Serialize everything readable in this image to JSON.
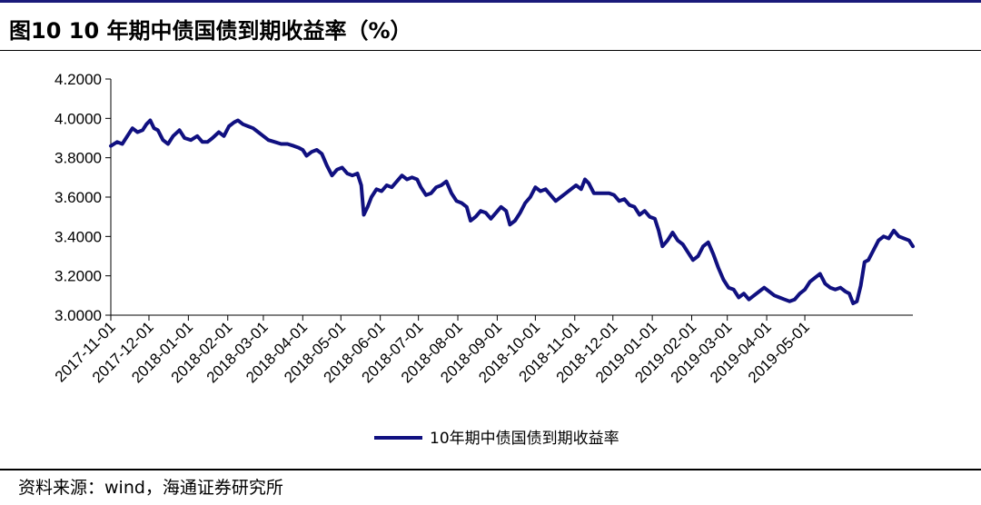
{
  "header": {
    "title": "图10 10 年期中债国债到期收益率（%）"
  },
  "footer": {
    "source": "资料来源：wind，海通证券研究所"
  },
  "colors": {
    "series": "#101080",
    "axis": "#000000",
    "rule": "#1a1a7a"
  },
  "chart_data": {
    "type": "line",
    "title": "图10 10 年期中债国债到期收益率（%）",
    "xlabel": "",
    "ylabel": "",
    "ylim": [
      3.0,
      4.2
    ],
    "y_ticks": [
      "3.0000",
      "3.2000",
      "3.4000",
      "3.6000",
      "3.8000",
      "4.0000",
      "4.2000"
    ],
    "x_ticks": [
      "2017-11-01",
      "2017-12-01",
      "2018-01-01",
      "2018-02-01",
      "2018-03-01",
      "2018-04-01",
      "2018-05-01",
      "2018-06-01",
      "2018-07-01",
      "2018-08-01",
      "2018-09-01",
      "2018-10-01",
      "2018-11-01",
      "2018-12-01",
      "2019-01-01",
      "2019-02-01",
      "2019-03-01",
      "2019-04-01",
      "2019-05-01"
    ],
    "grid": false,
    "legend_position": "bottom",
    "series": [
      {
        "name": "10年期中债国债到期收益率",
        "points": [
          [
            "2017-11-01",
            3.86
          ],
          [
            "2017-11-06",
            3.88
          ],
          [
            "2017-11-10",
            3.87
          ],
          [
            "2017-11-14",
            3.91
          ],
          [
            "2017-11-18",
            3.95
          ],
          [
            "2017-11-22",
            3.93
          ],
          [
            "2017-11-26",
            3.94
          ],
          [
            "2017-11-29",
            3.97
          ],
          [
            "2017-12-02",
            3.99
          ],
          [
            "2017-12-05",
            3.95
          ],
          [
            "2017-12-08",
            3.94
          ],
          [
            "2017-12-12",
            3.89
          ],
          [
            "2017-12-16",
            3.87
          ],
          [
            "2017-12-20",
            3.91
          ],
          [
            "2017-12-25",
            3.94
          ],
          [
            "2017-12-29",
            3.9
          ],
          [
            "2018-01-03",
            3.89
          ],
          [
            "2018-01-08",
            3.91
          ],
          [
            "2018-01-12",
            3.88
          ],
          [
            "2018-01-16",
            3.88
          ],
          [
            "2018-01-20",
            3.9
          ],
          [
            "2018-01-25",
            3.93
          ],
          [
            "2018-01-29",
            3.91
          ],
          [
            "2018-02-02",
            3.96
          ],
          [
            "2018-02-06",
            3.98
          ],
          [
            "2018-02-09",
            3.99
          ],
          [
            "2018-02-13",
            3.97
          ],
          [
            "2018-02-17",
            3.96
          ],
          [
            "2018-02-21",
            3.95
          ],
          [
            "2018-02-25",
            3.93
          ],
          [
            "2018-03-01",
            3.91
          ],
          [
            "2018-03-05",
            3.89
          ],
          [
            "2018-03-10",
            3.88
          ],
          [
            "2018-03-15",
            3.87
          ],
          [
            "2018-03-20",
            3.87
          ],
          [
            "2018-03-25",
            3.86
          ],
          [
            "2018-03-29",
            3.85
          ],
          [
            "2018-04-01",
            3.84
          ],
          [
            "2018-04-04",
            3.81
          ],
          [
            "2018-04-08",
            3.83
          ],
          [
            "2018-04-12",
            3.84
          ],
          [
            "2018-04-16",
            3.82
          ],
          [
            "2018-04-20",
            3.76
          ],
          [
            "2018-04-24",
            3.71
          ],
          [
            "2018-04-28",
            3.74
          ],
          [
            "2018-05-02",
            3.75
          ],
          [
            "2018-05-06",
            3.72
          ],
          [
            "2018-05-10",
            3.71
          ],
          [
            "2018-05-14",
            3.72
          ],
          [
            "2018-05-17",
            3.66
          ],
          [
            "2018-05-19",
            3.51
          ],
          [
            "2018-05-22",
            3.55
          ],
          [
            "2018-05-25",
            3.6
          ],
          [
            "2018-05-29",
            3.64
          ],
          [
            "2018-06-02",
            3.63
          ],
          [
            "2018-06-06",
            3.66
          ],
          [
            "2018-06-10",
            3.65
          ],
          [
            "2018-06-14",
            3.68
          ],
          [
            "2018-06-18",
            3.71
          ],
          [
            "2018-06-22",
            3.69
          ],
          [
            "2018-06-26",
            3.7
          ],
          [
            "2018-06-30",
            3.69
          ],
          [
            "2018-07-03",
            3.65
          ],
          [
            "2018-07-07",
            3.61
          ],
          [
            "2018-07-11",
            3.62
          ],
          [
            "2018-07-15",
            3.65
          ],
          [
            "2018-07-19",
            3.66
          ],
          [
            "2018-07-23",
            3.68
          ],
          [
            "2018-07-27",
            3.62
          ],
          [
            "2018-07-31",
            3.58
          ],
          [
            "2018-08-04",
            3.57
          ],
          [
            "2018-08-08",
            3.55
          ],
          [
            "2018-08-11",
            3.48
          ],
          [
            "2018-08-15",
            3.5
          ],
          [
            "2018-08-19",
            3.53
          ],
          [
            "2018-08-23",
            3.52
          ],
          [
            "2018-08-27",
            3.49
          ],
          [
            "2018-08-31",
            3.52
          ],
          [
            "2018-09-04",
            3.55
          ],
          [
            "2018-09-08",
            3.53
          ],
          [
            "2018-09-11",
            3.46
          ],
          [
            "2018-09-15",
            3.48
          ],
          [
            "2018-09-19",
            3.52
          ],
          [
            "2018-09-23",
            3.57
          ],
          [
            "2018-09-27",
            3.6
          ],
          [
            "2018-10-01",
            3.65
          ],
          [
            "2018-10-05",
            3.63
          ],
          [
            "2018-10-09",
            3.64
          ],
          [
            "2018-10-13",
            3.61
          ],
          [
            "2018-10-17",
            3.58
          ],
          [
            "2018-10-21",
            3.6
          ],
          [
            "2018-10-25",
            3.62
          ],
          [
            "2018-10-29",
            3.64
          ],
          [
            "2018-11-02",
            3.66
          ],
          [
            "2018-11-06",
            3.64
          ],
          [
            "2018-11-09",
            3.69
          ],
          [
            "2018-11-12",
            3.67
          ],
          [
            "2018-11-16",
            3.62
          ],
          [
            "2018-11-20",
            3.62
          ],
          [
            "2018-11-24",
            3.62
          ],
          [
            "2018-11-28",
            3.62
          ],
          [
            "2018-12-02",
            3.61
          ],
          [
            "2018-12-06",
            3.58
          ],
          [
            "2018-12-10",
            3.59
          ],
          [
            "2018-12-14",
            3.56
          ],
          [
            "2018-12-18",
            3.55
          ],
          [
            "2018-12-22",
            3.51
          ],
          [
            "2018-12-26",
            3.53
          ],
          [
            "2018-12-30",
            3.5
          ],
          [
            "2019-01-03",
            3.49
          ],
          [
            "2019-01-06",
            3.43
          ],
          [
            "2019-01-09",
            3.35
          ],
          [
            "2019-01-13",
            3.38
          ],
          [
            "2019-01-17",
            3.42
          ],
          [
            "2019-01-21",
            3.38
          ],
          [
            "2019-01-25",
            3.36
          ],
          [
            "2019-01-29",
            3.32
          ],
          [
            "2019-02-02",
            3.28
          ],
          [
            "2019-02-06",
            3.3
          ],
          [
            "2019-02-10",
            3.35
          ],
          [
            "2019-02-14",
            3.37
          ],
          [
            "2019-02-18",
            3.31
          ],
          [
            "2019-02-22",
            3.24
          ],
          [
            "2019-02-26",
            3.18
          ],
          [
            "2019-03-02",
            3.14
          ],
          [
            "2019-03-06",
            3.13
          ],
          [
            "2019-03-10",
            3.09
          ],
          [
            "2019-03-14",
            3.11
          ],
          [
            "2019-03-18",
            3.08
          ],
          [
            "2019-03-22",
            3.1
          ],
          [
            "2019-03-26",
            3.12
          ],
          [
            "2019-03-30",
            3.14
          ],
          [
            "2019-04-03",
            3.12
          ],
          [
            "2019-04-07",
            3.1
          ],
          [
            "2019-04-11",
            3.09
          ],
          [
            "2019-04-15",
            3.08
          ],
          [
            "2019-04-19",
            3.07
          ],
          [
            "2019-04-23",
            3.08
          ],
          [
            "2019-04-27",
            3.11
          ],
          [
            "2019-05-01",
            3.13
          ],
          [
            "2019-05-05",
            3.17
          ],
          [
            "2019-05-09",
            3.19
          ],
          [
            "2019-05-13",
            3.21
          ],
          [
            "2019-05-17",
            3.16
          ],
          [
            "2019-05-21",
            3.14
          ],
          [
            "2019-05-25",
            3.13
          ],
          [
            "2019-05-29",
            3.14
          ],
          [
            "2019-06-02",
            3.12
          ],
          [
            "2019-06-05",
            3.11
          ],
          [
            "2019-06-08",
            3.06
          ],
          [
            "2019-06-11",
            3.07
          ],
          [
            "2019-06-14",
            3.15
          ],
          [
            "2019-06-17",
            3.27
          ],
          [
            "2019-06-20",
            3.28
          ],
          [
            "2019-06-24",
            3.33
          ],
          [
            "2019-06-28",
            3.38
          ],
          [
            "2019-07-02",
            3.4
          ],
          [
            "2019-07-06",
            3.39
          ],
          [
            "2019-07-10",
            3.43
          ],
          [
            "2019-07-14",
            3.4
          ],
          [
            "2019-07-18",
            3.39
          ],
          [
            "2019-07-22",
            3.38
          ],
          [
            "2019-07-25",
            3.35
          ]
        ]
      }
    ]
  }
}
